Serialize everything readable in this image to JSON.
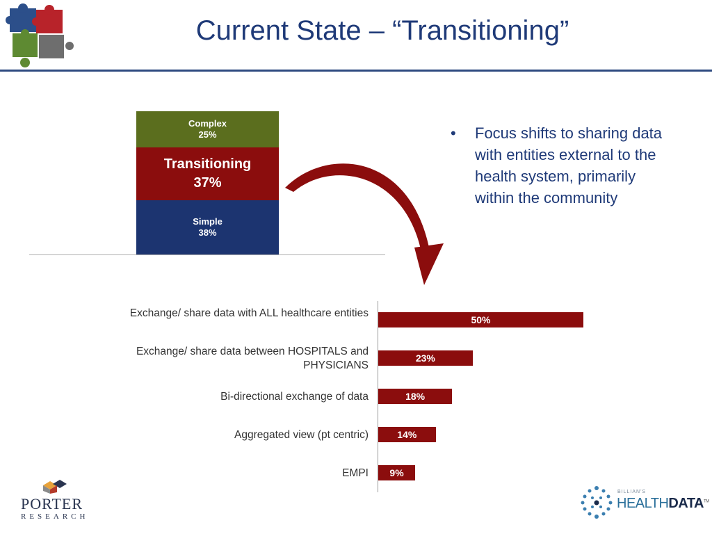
{
  "slide": {
    "title": "Current State – “Transitioning”",
    "bullet": "Focus shifts to sharing data with entities external to the health system, primarily within the community",
    "bullet_marker": "•"
  },
  "logos": {
    "porter_name": "PORTER",
    "porter_sub": "RESEARCH",
    "hd_small": "BILLIAN'S",
    "hd_brand_light": "HEALTH",
    "hd_brand_bold": "DATA",
    "hd_tm": "TM"
  },
  "colors": {
    "complex": "#5b6e1e",
    "transitioning": "#8b0d0d",
    "simple": "#1c3470",
    "bar": "#8b0d0d",
    "title": "#1f3a78"
  },
  "chart_data": [
    {
      "type": "bar",
      "stacked": true,
      "categories": [
        ""
      ],
      "series": [
        {
          "name": "Simple",
          "values": [
            38
          ],
          "label": "38%"
        },
        {
          "name": "Transitioning",
          "values": [
            37
          ],
          "label": "37%"
        },
        {
          "name": "Complex",
          "values": [
            25
          ],
          "label": "25%"
        }
      ],
      "ylim": [
        0,
        100
      ]
    },
    {
      "type": "bar",
      "orientation": "horizontal",
      "categories": [
        "Exchange/ share data with ALL healthcare entities",
        "Exchange/ share data between HOSPITALS and PHYSICIANS",
        "Bi-directional exchange of data",
        "Aggregated view (pt centric)",
        "EMPI"
      ],
      "values": [
        50,
        23,
        18,
        14,
        9
      ],
      "labels": [
        "50%",
        "23%",
        "18%",
        "14%",
        "9%"
      ],
      "xlim": [
        0,
        100
      ]
    }
  ]
}
